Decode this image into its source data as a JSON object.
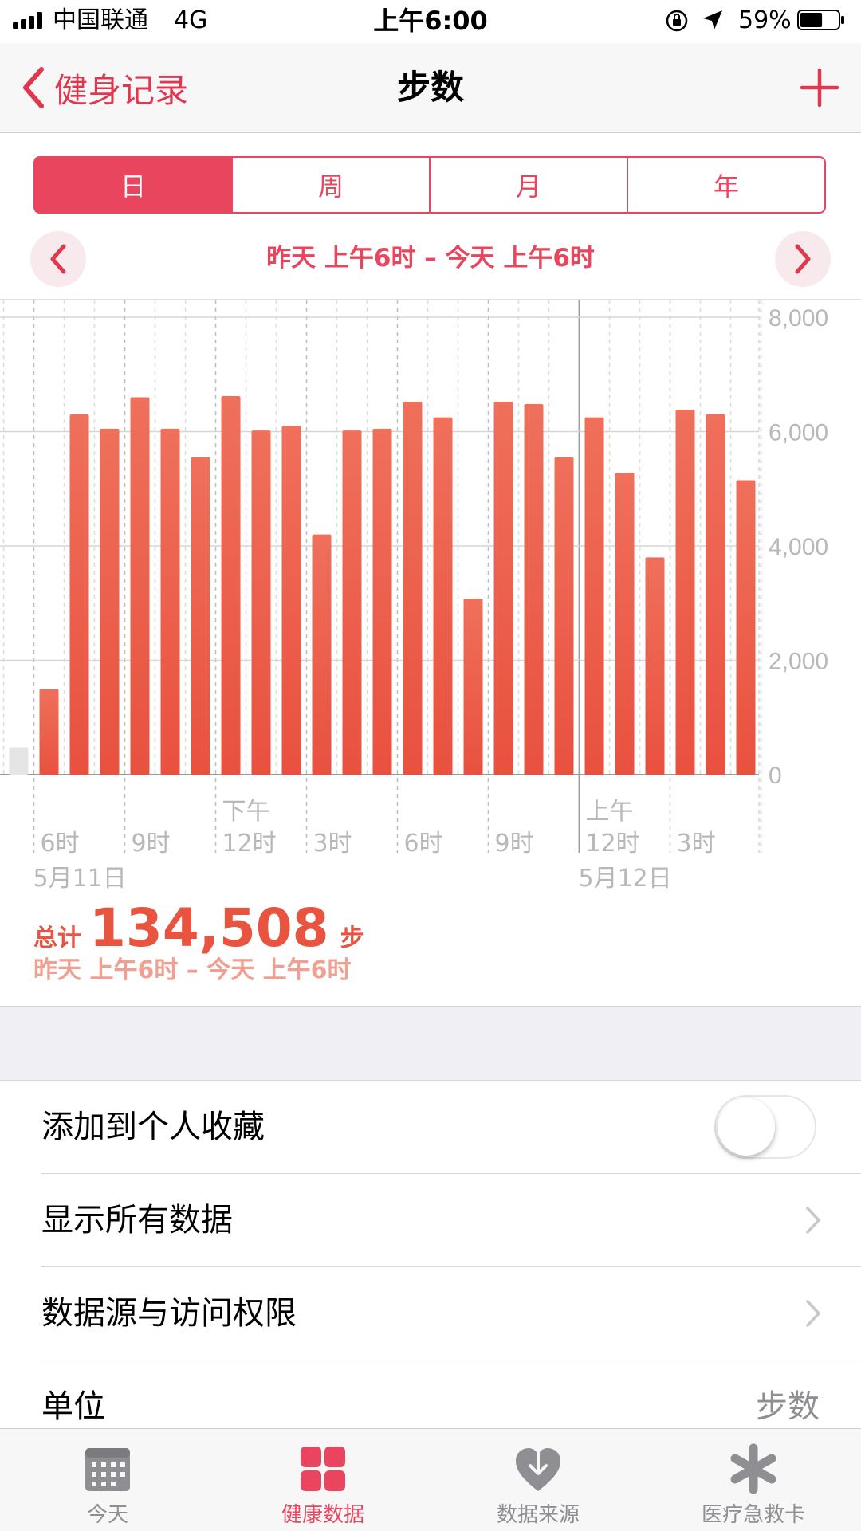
{
  "status_bar": {
    "carrier": "中国联通",
    "network": "4G",
    "time": "上午6:00",
    "battery": "59%",
    "battery_level": 0.59
  },
  "nav": {
    "back_label": "健身记录",
    "title": "步数",
    "add_label": "+"
  },
  "segments": [
    {
      "label": "日",
      "active": true
    },
    {
      "label": "周",
      "active": false
    },
    {
      "label": "月",
      "active": false
    },
    {
      "label": "年",
      "active": false
    }
  ],
  "range": {
    "label": "昨天 上午6时 – 今天 上午6时"
  },
  "chart_data": {
    "type": "bar",
    "title": "步数",
    "ylim": [
      0,
      8000
    ],
    "yticks": [
      "8,000",
      "6,000",
      "4,000",
      "2,000",
      "0"
    ],
    "ytick_values": [
      8000,
      6000,
      4000,
      2000,
      0
    ],
    "hour_labels": [
      {
        "hour": 6,
        "top": "",
        "bottom": "6时"
      },
      {
        "hour": 9,
        "top": "",
        "bottom": "9时"
      },
      {
        "hour": 12,
        "top": "下午",
        "bottom": "12时"
      },
      {
        "hour": 15,
        "top": "",
        "bottom": "3时"
      },
      {
        "hour": 18,
        "top": "",
        "bottom": "6时"
      },
      {
        "hour": 21,
        "top": "",
        "bottom": "9时"
      },
      {
        "hour": 24,
        "top": "上午",
        "bottom": "12时"
      },
      {
        "hour": 27,
        "top": "",
        "bottom": "3时"
      }
    ],
    "date_labels": [
      {
        "hour": 6,
        "label": "5月11日"
      },
      {
        "hour": 24,
        "label": "5月12日"
      }
    ],
    "bars": [
      {
        "hour": 5,
        "value": 480,
        "state": "inactive"
      },
      {
        "hour": 6,
        "value": 1500
      },
      {
        "hour": 7,
        "value": 6300
      },
      {
        "hour": 8,
        "value": 6050
      },
      {
        "hour": 9,
        "value": 6600
      },
      {
        "hour": 10,
        "value": 6050
      },
      {
        "hour": 11,
        "value": 5550
      },
      {
        "hour": 12,
        "value": 6620
      },
      {
        "hour": 13,
        "value": 6020
      },
      {
        "hour": 14,
        "value": 6100
      },
      {
        "hour": 15,
        "value": 4200
      },
      {
        "hour": 16,
        "value": 6020
      },
      {
        "hour": 17,
        "value": 6050
      },
      {
        "hour": 18,
        "value": 6520
      },
      {
        "hour": 19,
        "value": 6250
      },
      {
        "hour": 20,
        "value": 3080
      },
      {
        "hour": 21,
        "value": 6520
      },
      {
        "hour": 22,
        "value": 6480
      },
      {
        "hour": 23,
        "value": 5550
      },
      {
        "hour": 24,
        "value": 6250
      },
      {
        "hour": 25,
        "value": 5280
      },
      {
        "hour": 26,
        "value": 3800
      },
      {
        "hour": 27,
        "value": 6380
      },
      {
        "hour": 28,
        "value": 6300
      },
      {
        "hour": 29,
        "value": 5150
      }
    ]
  },
  "total": {
    "prefix": "总计",
    "value": "134,508",
    "unit": "步",
    "range": "昨天 上午6时 – 今天 上午6时"
  },
  "list": {
    "favorites_label": "添加到个人收藏",
    "favorites_on": false,
    "show_all_label": "显示所有数据",
    "sources_label": "数据源与访问权限",
    "unit_label": "单位",
    "unit_value": "步数"
  },
  "tabs": [
    {
      "label": "今天",
      "icon": "calendar-icon",
      "active": false
    },
    {
      "label": "健康数据",
      "icon": "grid-icon",
      "active": true
    },
    {
      "label": "数据来源",
      "icon": "heart-download-icon",
      "active": false
    },
    {
      "label": "医疗急救卡",
      "icon": "asterisk-icon",
      "active": false
    }
  ],
  "colors": {
    "accent": "#e9455e",
    "bar": "#ee6650",
    "bar_inactive": "#e5e5e5",
    "total": "#e8543f"
  }
}
